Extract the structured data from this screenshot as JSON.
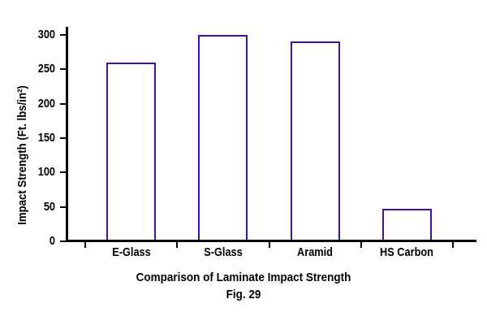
{
  "chart_data": {
    "type": "bar",
    "title": "Comparison of Laminate Impact Strength",
    "caption": "Fig. 29",
    "ylabel": "Impact Strength (Ft. lbs/in²)",
    "xlabel": "",
    "categories": [
      "E-Glass",
      "S-Glass",
      "Aramid",
      "HS Carbon"
    ],
    "values": [
      260,
      300,
      290,
      47
    ],
    "ylim": [
      0,
      300
    ],
    "yticks": [
      0,
      50,
      100,
      150,
      200,
      250,
      300
    ],
    "grid": false,
    "legend": "none",
    "bar_fill": "#ffffff",
    "bar_stroke": "#40109b",
    "axis_color": "#000000",
    "text_color": "#000000"
  }
}
